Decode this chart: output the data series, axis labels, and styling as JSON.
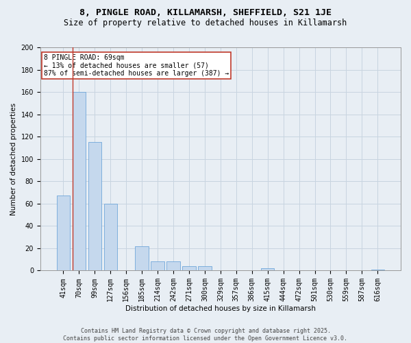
{
  "title_line1": "8, PINGLE ROAD, KILLAMARSH, SHEFFIELD, S21 1JE",
  "title_line2": "Size of property relative to detached houses in Killamarsh",
  "xlabel": "Distribution of detached houses by size in Killamarsh",
  "ylabel": "Number of detached properties",
  "categories": [
    "41sqm",
    "70sqm",
    "99sqm",
    "127sqm",
    "156sqm",
    "185sqm",
    "214sqm",
    "242sqm",
    "271sqm",
    "300sqm",
    "329sqm",
    "357sqm",
    "386sqm",
    "415sqm",
    "444sqm",
    "472sqm",
    "501sqm",
    "530sqm",
    "559sqm",
    "587sqm",
    "616sqm"
  ],
  "values": [
    67,
    160,
    115,
    60,
    0,
    22,
    8,
    8,
    4,
    4,
    0,
    0,
    0,
    2,
    0,
    0,
    0,
    0,
    0,
    0,
    1
  ],
  "bar_color": "#c5d8ed",
  "bar_edgecolor": "#5b9bd5",
  "highlight_index": 1,
  "annotation_box_edgecolor": "#c0392b",
  "annotation_text_line1": "8 PINGLE ROAD: 69sqm",
  "annotation_text_line2": "← 13% of detached houses are smaller (57)",
  "annotation_text_line3": "87% of semi-detached houses are larger (387) →",
  "ylim": [
    0,
    200
  ],
  "yticks": [
    0,
    20,
    40,
    60,
    80,
    100,
    120,
    140,
    160,
    180,
    200
  ],
  "footer_line1": "Contains HM Land Registry data © Crown copyright and database right 2025.",
  "footer_line2": "Contains public sector information licensed under the Open Government Licence v3.0.",
  "background_color": "#e8eef4",
  "plot_background_color": "#e8eef4",
  "grid_color": "#c8d4e0",
  "red_line_color": "#c0392b",
  "title_fontsize": 9.5,
  "subtitle_fontsize": 8.5,
  "ylabel_fontsize": 7.5,
  "xlabel_fontsize": 7.5,
  "tick_fontsize": 7,
  "annotation_fontsize": 7,
  "footer_fontsize": 6
}
